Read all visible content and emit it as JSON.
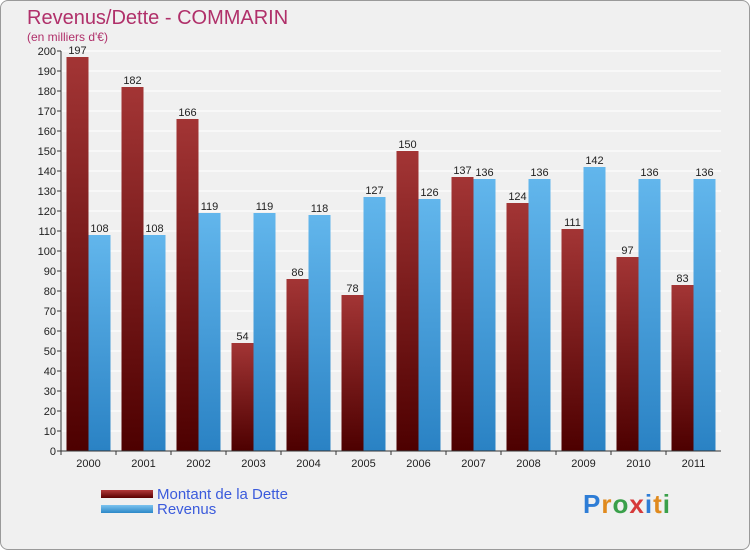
{
  "header": {
    "title": "Revenus/Dette - COMMARIN",
    "subtitle": "(en milliers d'€)"
  },
  "chart_data": {
    "type": "bar",
    "categories": [
      "2000",
      "2001",
      "2002",
      "2003",
      "2004",
      "2005",
      "2006",
      "2007",
      "2008",
      "2009",
      "2010",
      "2011"
    ],
    "series": [
      {
        "name": "Montant de la Dette",
        "values": [
          197,
          182,
          166,
          54,
          86,
          78,
          150,
          137,
          124,
          111,
          97,
          83
        ],
        "color": "#7a1414"
      },
      {
        "name": "Revenus",
        "values": [
          108,
          108,
          119,
          119,
          118,
          127,
          126,
          136,
          136,
          142,
          136,
          136
        ],
        "color": "#4aa3e0"
      }
    ],
    "y_ticks": [
      "0",
      "10",
      "20",
      "30",
      "40",
      "50",
      "60",
      "70",
      "80",
      "90",
      "100",
      "110",
      "120",
      "130",
      "140",
      "150",
      "160",
      "170",
      "180",
      "190",
      "200"
    ],
    "ylim": [
      0,
      200
    ],
    "grid": true,
    "legend_position": "bottom-left"
  },
  "logo": {
    "letters": [
      "P",
      "r",
      "o",
      "x",
      "i",
      "t",
      "i"
    ],
    "colors": [
      "#2e7dd6",
      "#e08a1e",
      "#3aa04a",
      "#d63a3a",
      "#2e7dd6",
      "#e08a1e",
      "#3aa04a"
    ]
  }
}
